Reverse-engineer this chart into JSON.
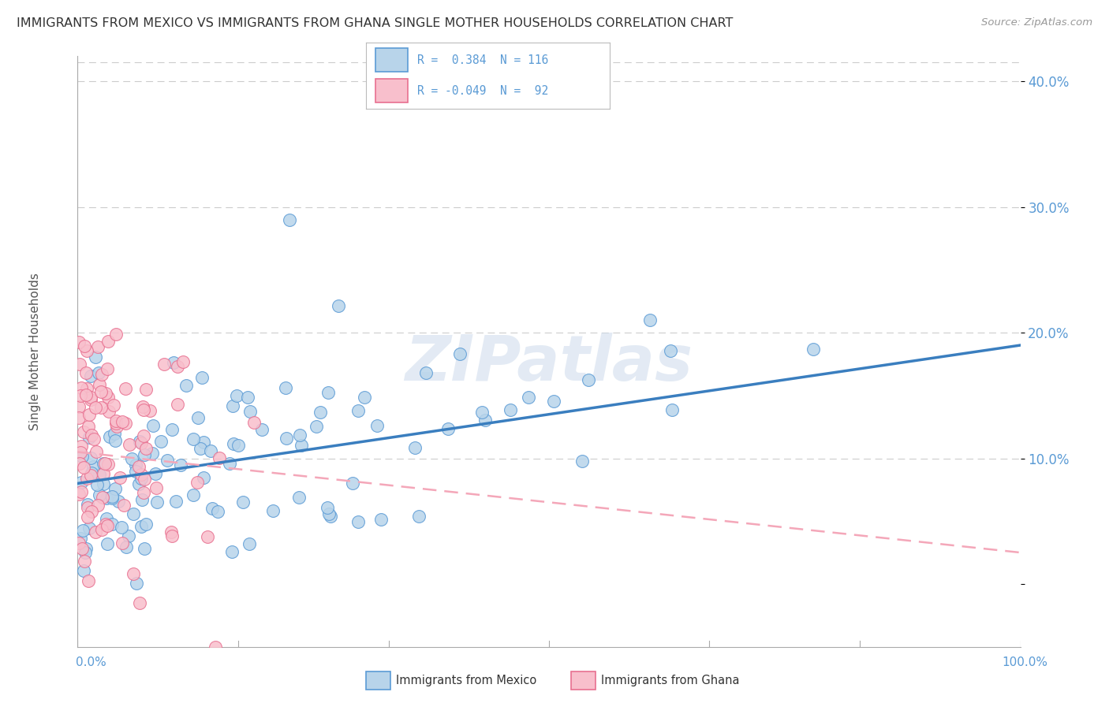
{
  "title": "IMMIGRANTS FROM MEXICO VS IMMIGRANTS FROM GHANA SINGLE MOTHER HOUSEHOLDS CORRELATION CHART",
  "source": "Source: ZipAtlas.com",
  "ylabel": "Single Mother Households",
  "legend_labels": [
    "Immigrants from Mexico",
    "Immigrants from Ghana"
  ],
  "R_mexico": 0.384,
  "N_mexico": 116,
  "R_ghana": -0.049,
  "N_ghana": 92,
  "color_mexico_fill": "#b8d4ea",
  "color_mexico_edge": "#5b9bd5",
  "color_ghana_fill": "#f8bfcc",
  "color_ghana_edge": "#e87090",
  "line_color_mexico": "#3a7ebf",
  "line_color_ghana": "#f4a7b9",
  "watermark": "ZIPatlas",
  "bg_color": "#ffffff",
  "grid_color": "#cccccc",
  "axis_label_color": "#5b9bd5",
  "title_color": "#333333",
  "xlim": [
    0,
    100
  ],
  "ylim": [
    -5,
    42
  ],
  "yticks": [
    0,
    10,
    20,
    30,
    40
  ],
  "ytick_labels": [
    "",
    "10.0%",
    "20.0%",
    "30.0%",
    "40.0%"
  ],
  "trend_mexico_x0": 0,
  "trend_mexico_y0": 8.0,
  "trend_mexico_x1": 100,
  "trend_mexico_y1": 19.0,
  "trend_ghana_x0": 0,
  "trend_ghana_y0": 10.5,
  "trend_ghana_x1": 100,
  "trend_ghana_y1": 2.5,
  "seed_mexico": 42,
  "seed_ghana": 99,
  "marker_size": 130
}
